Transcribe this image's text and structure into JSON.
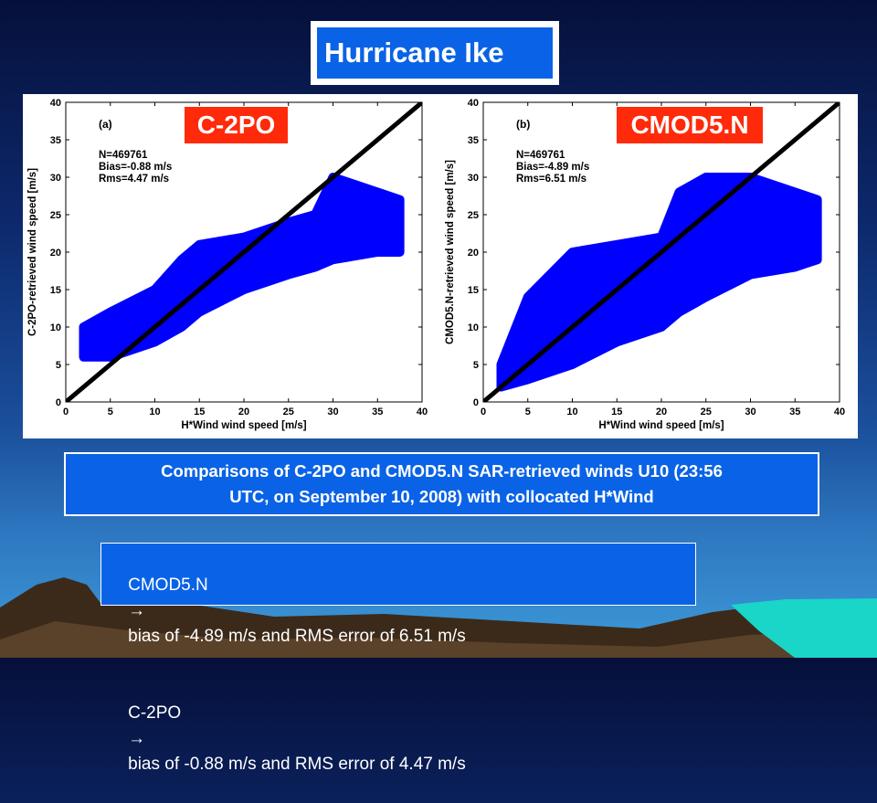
{
  "title": "Hurricane Ike",
  "caption_line1": "Comparisons of C-2PO and CMOD5.N SAR-retrieved winds U10 (23:56",
  "caption_line2": "UTC, on September 10, 2008) with collocated H*Wind",
  "notes": [
    {
      "label": "CMOD5.N",
      "arrow": "→",
      "text": "bias of -4.89 m/s and RMS error of 6.51 m/s"
    },
    {
      "label": "C-2PO",
      "arrow": "→",
      "text": "bias of -0.88 m/s and RMS error of 4.47 m/s"
    }
  ],
  "colors": {
    "tag": "#ff2a0a",
    "box": "#0a63e6",
    "points": "#0000ff"
  },
  "chart_data": [
    {
      "type": "scatter",
      "tag": "C-2PO",
      "panel_label": "(a)",
      "stats": [
        "N=469761",
        "Bias=-0.88 m/s",
        "Rms=4.47 m/s"
      ],
      "xlabel": "H*Wind wind speed [m/s]",
      "ylabel": "C-2PO-retrieved wind speed [m/s]",
      "xlim": [
        0,
        40
      ],
      "ylim": [
        0,
        40
      ],
      "xticks": [
        0,
        5,
        10,
        15,
        20,
        25,
        30,
        35,
        40
      ],
      "yticks": [
        0,
        5,
        10,
        15,
        20,
        25,
        30,
        35,
        40
      ],
      "reference_line": [
        [
          0,
          0
        ],
        [
          40,
          40
        ]
      ],
      "point_cloud_band": {
        "x": [
          2,
          5,
          10,
          13,
          15,
          20,
          25,
          28,
          30,
          35,
          37.5
        ],
        "y_low": [
          6,
          6,
          8,
          10,
          12,
          15,
          17,
          18,
          19,
          20,
          20
        ],
        "y_high": [
          10,
          12,
          15,
          19,
          21,
          22,
          24,
          25,
          30,
          28,
          27
        ]
      }
    },
    {
      "type": "scatter",
      "tag": "CMOD5.N",
      "panel_label": "(b)",
      "stats": [
        "N=469761",
        "Bias=-4.89 m/s",
        "Rms=6.51 m/s"
      ],
      "xlabel": "H*Wind wind speed [m/s]",
      "ylabel": "CMOD5.N-retrieved wind speed [m/s]",
      "xlim": [
        0,
        40
      ],
      "ylim": [
        0,
        40
      ],
      "xticks": [
        0,
        5,
        10,
        15,
        20,
        25,
        30,
        35,
        40
      ],
      "yticks": [
        0,
        5,
        10,
        15,
        20,
        25,
        30,
        35,
        40
      ],
      "reference_line": [
        [
          0,
          0
        ],
        [
          40,
          40
        ]
      ],
      "point_cloud_band": {
        "x": [
          2,
          5,
          10,
          15,
          20,
          22,
          25,
          30,
          35,
          37.5
        ],
        "y_low": [
          2,
          3,
          5,
          8,
          10,
          12,
          14,
          17,
          18,
          19
        ],
        "y_high": [
          5,
          14,
          20,
          21,
          22,
          28,
          30,
          30,
          28,
          27
        ]
      }
    }
  ]
}
